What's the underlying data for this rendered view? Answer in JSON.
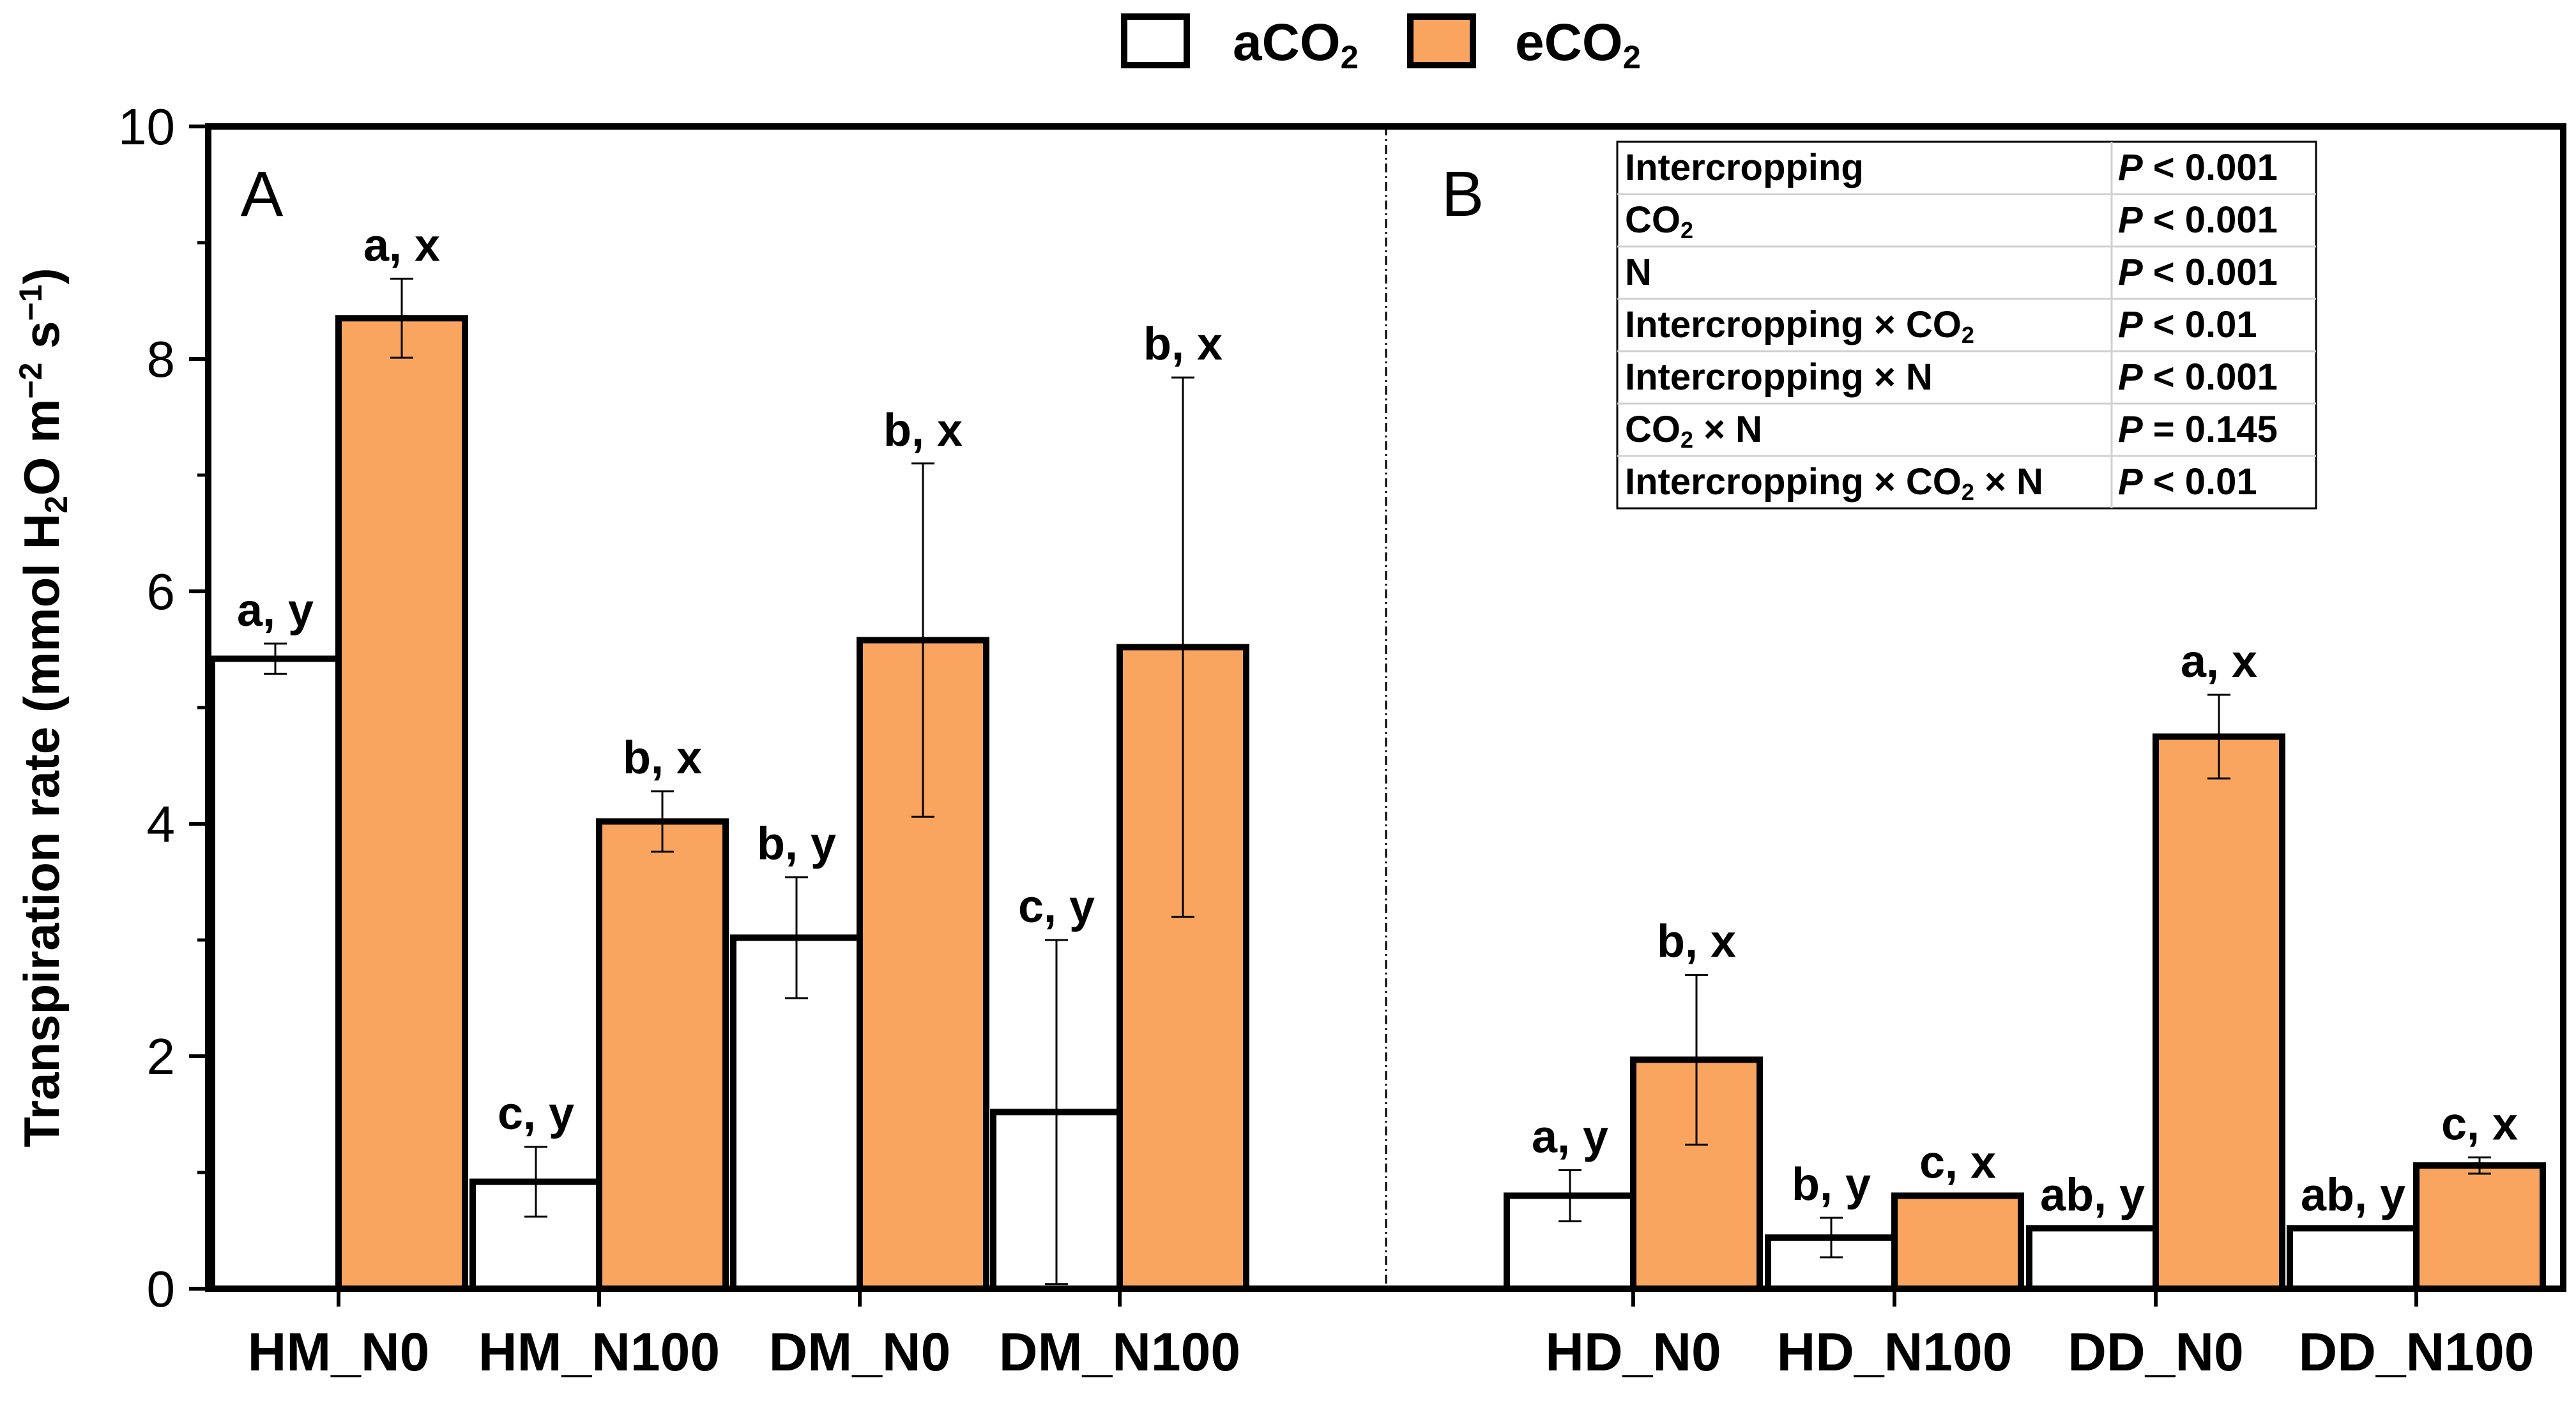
{
  "chart_data": {
    "type": "bar",
    "ylabel": "Transpiration rate (mmol H2O m-2 s-1)",
    "ylim": [
      0,
      10
    ],
    "yticks": [
      "0",
      "2",
      "4",
      "6",
      "8",
      "10"
    ],
    "legend": {
      "position": "top-center",
      "items": [
        {
          "label": "aCO",
          "sub": "2",
          "color": "#ffffff"
        },
        {
          "label": "eCO",
          "sub": "2",
          "color": "#f9a560"
        }
      ]
    },
    "panels": [
      {
        "label": "A",
        "categories": [
          "HM_N0",
          "HM_N100",
          "DM_N0",
          "DM_N100"
        ],
        "series": [
          {
            "name": "aCO2",
            "values": [
              5.42,
              0.92,
              3.02,
              1.52
            ],
            "errors": [
              0.13,
              0.3,
              0.52,
              1.48
            ],
            "letters": [
              "a, y",
              "c, y",
              "b, y",
              "c, y"
            ]
          },
          {
            "name": "eCO2",
            "values": [
              8.35,
              4.02,
              5.58,
              5.52
            ],
            "errors": [
              0.34,
              0.26,
              1.52,
              2.32
            ],
            "letters": [
              "a, x",
              "b, x",
              "b, x",
              "b, x"
            ]
          }
        ]
      },
      {
        "label": "B",
        "categories": [
          "HD_N0",
          "HD_N100",
          "DD_N0",
          "DD_N100"
        ],
        "series": [
          {
            "name": "aCO2",
            "values": [
              0.8,
              0.44,
              0.52,
              0.52
            ],
            "errors": [
              0.22,
              0.17,
              0.0,
              0.0
            ],
            "letters": [
              "a, y",
              "b, y",
              "ab, y",
              "ab, y"
            ]
          },
          {
            "name": "eCO2",
            "values": [
              1.97,
              0.8,
              4.75,
              1.06
            ],
            "errors": [
              0.73,
              0.0,
              0.36,
              0.07
            ],
            "letters": [
              "b, x",
              "c, x",
              "a, x",
              "c, x"
            ]
          }
        ]
      }
    ],
    "stats_table": [
      {
        "factor": "Intercropping",
        "p": "< 0.001"
      },
      {
        "factor": "CO2",
        "p": "< 0.001"
      },
      {
        "factor": "N",
        "p": "< 0.001"
      },
      {
        "factor": "Intercropping × CO2",
        "p": "< 0.01"
      },
      {
        "factor": "Intercropping × N",
        "p": "< 0.001"
      },
      {
        "factor": "CO2 × N",
        "p": "= 0.145"
      },
      {
        "factor": "Intercropping × CO2 × N",
        "p": "< 0.01"
      }
    ],
    "p_symbol": "P"
  }
}
